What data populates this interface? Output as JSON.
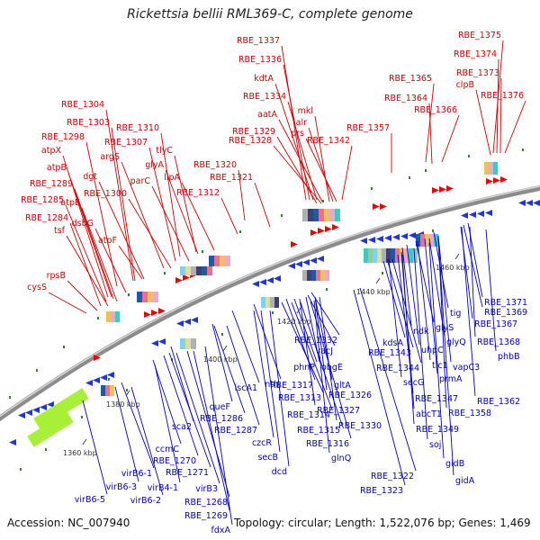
{
  "title": "Rickettsia bellii RML369-C, complete genome",
  "footer": {
    "accession": "Accession: NC_007940",
    "stats": "Topology: circular; Length: 1,522,076 bp; Genes: 1,469"
  },
  "colors": {
    "label_red": "#d40000",
    "label_blue": "#0000cc",
    "forward_strand": "#ee0000",
    "reverse_strand": "#1c34e8",
    "backbone": "#8c8c8c"
  },
  "backbone_ticks": [
    "1360 kbp",
    "1380 kbp",
    "1400 kbp",
    "1420 kbp",
    "1440 kbp",
    "1460 kbp"
  ],
  "red_labels": [
    "RBE_1375",
    "RBE_1337",
    "RBE_1374",
    "RBE_1336",
    "RBE_1373",
    "RBE_1365",
    "clpB",
    "kdtA",
    "RBE_1376",
    "RBE_1364",
    "RBE_1334",
    "RBE_1366",
    "mkl",
    "aatA",
    "RBE_1304",
    "alr",
    "RBE_1303",
    "RBE_1310",
    "RBE_1357",
    "RBE_1329",
    "prs",
    "RBE_1298",
    "RBE_1307",
    "RBE_1328",
    "RBE_1342",
    "tlyC",
    "atpX",
    "argS",
    "glyA",
    "RBE_1320",
    "atpB",
    "dgt",
    "lipA",
    "RBE_1289",
    "parC",
    "RBE_1321",
    "atpE",
    "RBE_1300",
    "RBE_1312",
    "RBE_1285",
    "RBE_1284",
    "dsbG",
    "tsf",
    "atpF",
    "rpsB",
    "cysS"
  ],
  "blue_labels": [
    "RBE_1371",
    "RBE_1369",
    "tig",
    "RBE_1367",
    "glyS",
    "ndk",
    "RBE_1368",
    "RBE_1332",
    "kdsA",
    "glyQ",
    "phbB",
    "vacJ",
    "uhpC",
    "RBE_1343",
    "phnP",
    "obgE",
    "tlc1",
    "vapC3",
    "RBE_1317",
    "RBE_1344",
    "nth",
    "iscA1",
    "gltA",
    "prmA",
    "RBE_1313",
    "RBE_1326",
    "secG",
    "RBE_1362",
    "RBE_1347",
    "RBE_1358",
    "RBE_1327",
    "RBE_1314",
    "abcT1",
    "queF",
    "RBE_1330",
    "RBE_1286",
    "RBE_1315",
    "RBE_1349",
    "sca2",
    "RBE_1287",
    "soj",
    "czcR",
    "RBE_1316",
    "ccmC",
    "gidB",
    "RBE_1270",
    "secB",
    "glnQ",
    "RBE_1271",
    "virB6-1",
    "dcd",
    "gidA",
    "virB6-3",
    "RBE_1322",
    "virB4-1",
    "virB3",
    "RBE_1323",
    "virB6-5",
    "virB6-2",
    "RBE_1268",
    "RBE_1269",
    "fdxA"
  ]
}
